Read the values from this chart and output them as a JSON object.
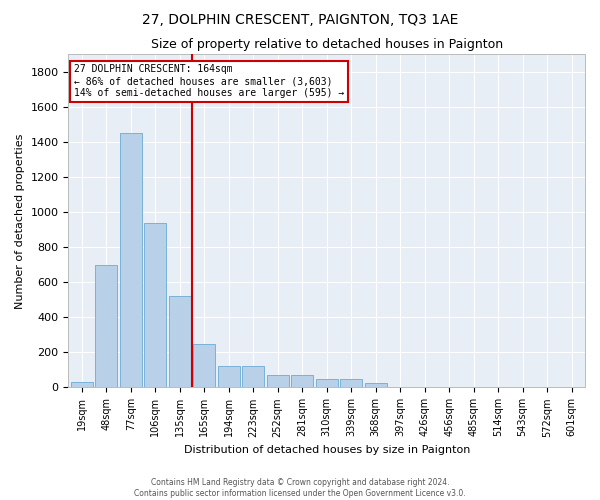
{
  "title": "27, DOLPHIN CRESCENT, PAIGNTON, TQ3 1AE",
  "subtitle": "Size of property relative to detached houses in Paignton",
  "xlabel": "Distribution of detached houses by size in Paignton",
  "ylabel": "Number of detached properties",
  "bar_color": "#b8d0e8",
  "bar_edge_color": "#6aaad4",
  "background_color": "#e8eef5",
  "grid_color": "#ffffff",
  "bin_labels": [
    "19sqm",
    "48sqm",
    "77sqm",
    "106sqm",
    "135sqm",
    "165sqm",
    "194sqm",
    "223sqm",
    "252sqm",
    "281sqm",
    "310sqm",
    "339sqm",
    "368sqm",
    "397sqm",
    "426sqm",
    "456sqm",
    "485sqm",
    "514sqm",
    "543sqm",
    "572sqm",
    "601sqm"
  ],
  "bar_heights": [
    30,
    700,
    1450,
    940,
    520,
    250,
    120,
    120,
    70,
    70,
    50,
    50,
    25,
    5,
    5,
    5,
    5,
    5,
    0,
    0,
    5
  ],
  "property_label": "27 DOLPHIN CRESCENT: 164sqm",
  "pct_smaller": 86,
  "n_smaller": 3603,
  "pct_larger": 14,
  "n_larger": 595,
  "vline_bin_index": 5,
  "annotation_box_edge_color": "#cc0000",
  "vline_color": "#cc0000",
  "ylim": [
    0,
    1900
  ],
  "yticks": [
    0,
    200,
    400,
    600,
    800,
    1000,
    1200,
    1400,
    1600,
    1800
  ],
  "footer1": "Contains HM Land Registry data © Crown copyright and database right 2024.",
  "footer2": "Contains public sector information licensed under the Open Government Licence v3.0.",
  "fig_width": 6.0,
  "fig_height": 5.0,
  "title_fontsize": 10,
  "subtitle_fontsize": 9,
  "ylabel_fontsize": 8,
  "xlabel_fontsize": 8,
  "tick_fontsize": 7,
  "annot_fontsize": 7,
  "footer_fontsize": 5.5
}
